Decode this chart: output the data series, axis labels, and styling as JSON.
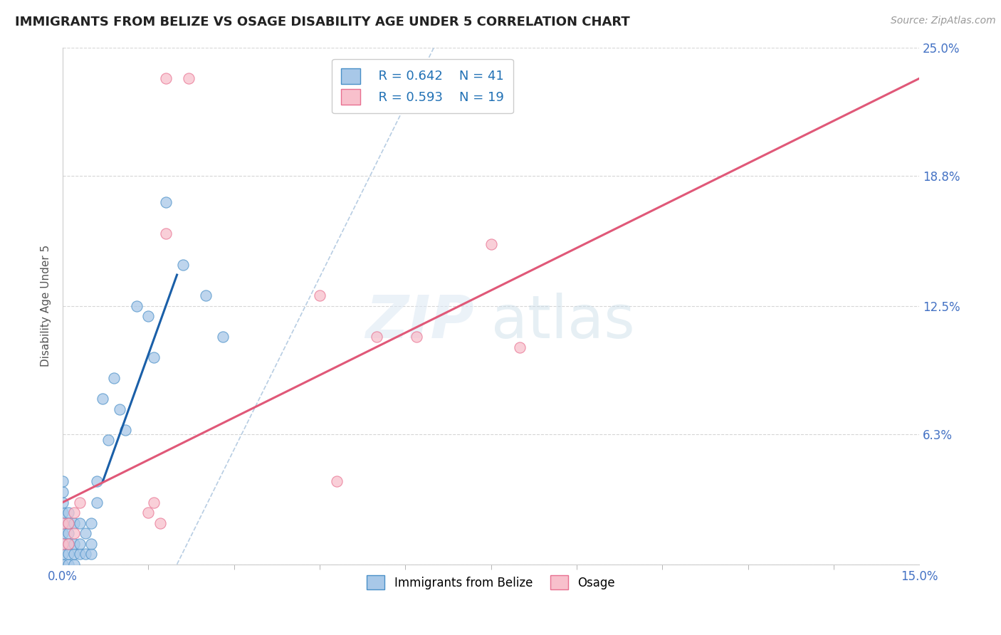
{
  "title": "IMMIGRANTS FROM BELIZE VS OSAGE DISABILITY AGE UNDER 5 CORRELATION CHART",
  "source": "Source: ZipAtlas.com",
  "ylabel": "Disability Age Under 5",
  "xlim": [
    0.0,
    0.15
  ],
  "ylim": [
    0.0,
    0.25
  ],
  "ytick_values": [
    0.0,
    0.063,
    0.125,
    0.188,
    0.25
  ],
  "ytick_labels": [
    "",
    "6.3%",
    "12.5%",
    "18.8%",
    "25.0%"
  ],
  "legend_r1": "R = 0.642",
  "legend_n1": "N = 41",
  "legend_r2": "R = 0.593",
  "legend_n2": "N = 19",
  "color_blue_fill": "#a8c8e8",
  "color_blue_edge": "#4a90c8",
  "color_blue_line": "#1a5fa8",
  "color_pink_fill": "#f8c0cc",
  "color_pink_edge": "#e87090",
  "color_pink_line": "#e05878",
  "color_dashed": "#b0c8e0",
  "background_color": "#ffffff",
  "grid_color": "#cccccc",
  "title_color": "#222222",
  "axis_label_color": "#4472c4",
  "belize_x": [
    0.0,
    0.0,
    0.0,
    0.0,
    0.0,
    0.0,
    0.0,
    0.0,
    0.0,
    0.001,
    0.001,
    0.001,
    0.001,
    0.001,
    0.001,
    0.002,
    0.002,
    0.002,
    0.002,
    0.003,
    0.003,
    0.003,
    0.004,
    0.004,
    0.005,
    0.005,
    0.005,
    0.006,
    0.006,
    0.007,
    0.008,
    0.009,
    0.01,
    0.011,
    0.013,
    0.015,
    0.016,
    0.018,
    0.021,
    0.025,
    0.028
  ],
  "belize_y": [
    0.0,
    0.005,
    0.01,
    0.015,
    0.02,
    0.025,
    0.03,
    0.035,
    0.04,
    0.0,
    0.005,
    0.01,
    0.015,
    0.02,
    0.025,
    0.0,
    0.005,
    0.01,
    0.02,
    0.005,
    0.01,
    0.02,
    0.005,
    0.015,
    0.005,
    0.01,
    0.02,
    0.03,
    0.04,
    0.08,
    0.06,
    0.09,
    0.075,
    0.065,
    0.125,
    0.12,
    0.1,
    0.175,
    0.145,
    0.13,
    0.11
  ],
  "osage_x": [
    0.0,
    0.0,
    0.001,
    0.001,
    0.002,
    0.002,
    0.003,
    0.018,
    0.022,
    0.015,
    0.016,
    0.017,
    0.018,
    0.045,
    0.048,
    0.055,
    0.062,
    0.075,
    0.08
  ],
  "osage_y": [
    0.01,
    0.02,
    0.01,
    0.02,
    0.015,
    0.025,
    0.03,
    0.235,
    0.235,
    0.025,
    0.03,
    0.02,
    0.16,
    0.13,
    0.04,
    0.11,
    0.11,
    0.155,
    0.105
  ],
  "blue_line_x": [
    0.007,
    0.02
  ],
  "blue_line_y": [
    0.04,
    0.14
  ],
  "pink_line_x": [
    0.0,
    0.15
  ],
  "pink_line_y": [
    0.03,
    0.235
  ],
  "dashed_line_x": [
    0.02,
    0.065
  ],
  "dashed_line_y": [
    0.0,
    0.25
  ]
}
